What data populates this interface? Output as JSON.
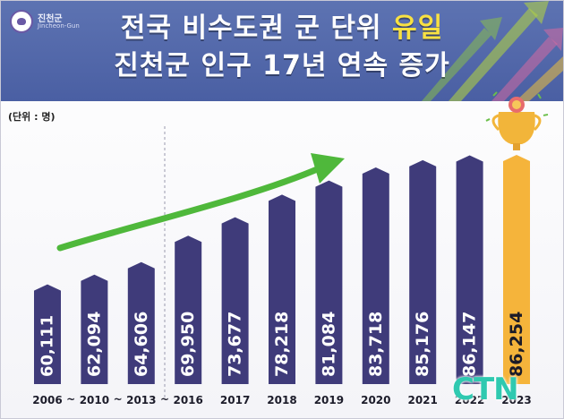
{
  "header": {
    "logo_name": "진천군",
    "logo_sub": "Jincheon-Gun",
    "title_line1_pre": "전국 비수도권 군 단위 ",
    "title_line1_highlight": "유일",
    "title_line2": "진천군 인구 17년 연속 증가"
  },
  "unit_label": "(단위 : 명)",
  "watermark": "CTN",
  "colors": {
    "header_bg": "#4a5fa3",
    "title_highlight": "#f8e142",
    "bar": "#3f3b7a",
    "bar_highlight": "#f5b43b",
    "trend_arrow": "#4fb83b",
    "watermark": "#2fc9b0"
  },
  "icons": [
    "trophy-icon",
    "trend-arrow-icon",
    "logo-icon"
  ],
  "chart_data": {
    "type": "bar",
    "categories": [
      "2006",
      "2010",
      "2013",
      "2016",
      "2017",
      "2018",
      "2019",
      "2020",
      "2021",
      "2022",
      "2023"
    ],
    "values": [
      60111,
      62094,
      64606,
      69950,
      73677,
      78218,
      81084,
      83718,
      85176,
      86147,
      86254
    ],
    "value_labels": [
      "60,111",
      "62,094",
      "64,606",
      "69,950",
      "73,677",
      "78,218",
      "81,084",
      "83,718",
      "85,176",
      "86,147",
      "86,254"
    ],
    "axis_separators": [
      "~",
      "~",
      "~"
    ],
    "highlight_category": "2023",
    "ylabel": "(단위 : 명)",
    "xlabel": "",
    "grid": false,
    "legend": "none"
  }
}
